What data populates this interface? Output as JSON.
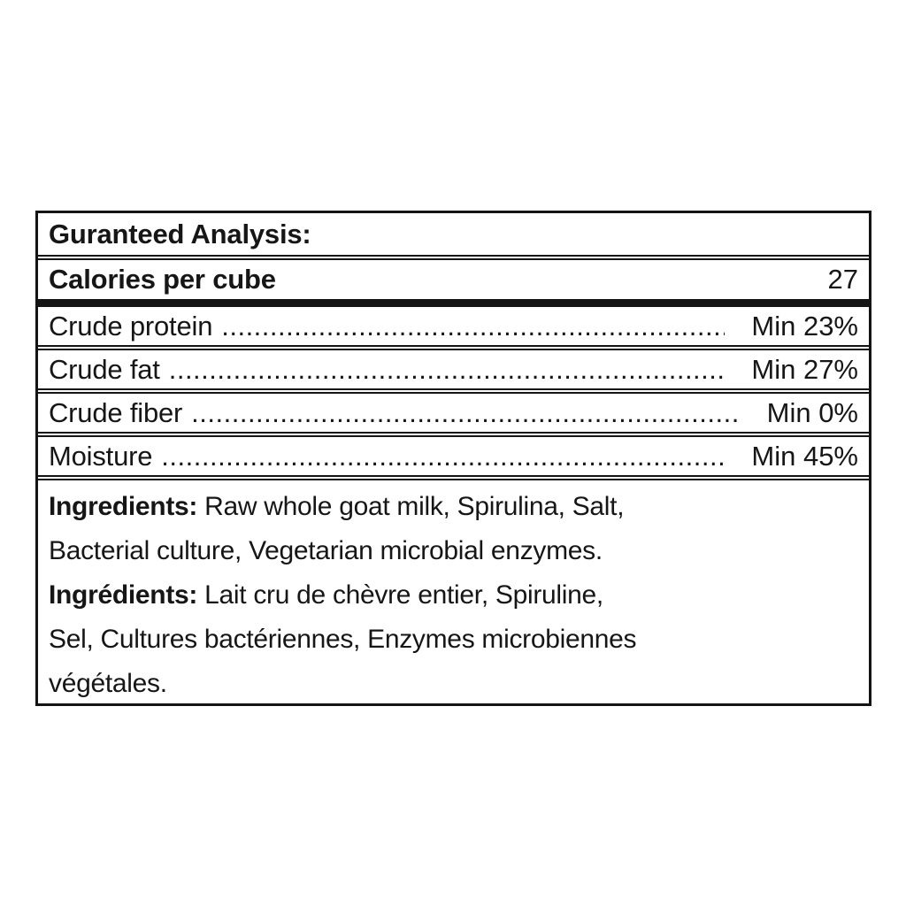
{
  "page": {
    "background_color": "#ffffff",
    "text_color": "#161616",
    "border_color": "#141414"
  },
  "table": {
    "header_title": "Guranteed Analysis:",
    "calories": {
      "label": "Calories per cube",
      "value": "27"
    },
    "analysis_rows": [
      {
        "label": "Crude protein",
        "value": "Min 23%"
      },
      {
        "label": "Crude fat",
        "value": "Min 27%"
      },
      {
        "label": "Crude fiber",
        "value": "Min 0%"
      },
      {
        "label": "Moisture",
        "value": "Min 45%"
      }
    ],
    "leader_dots": "........................................................................................................................",
    "ingredients": {
      "en_label": "Ingredients:",
      "en_line1_rest": " Raw whole goat milk, Spirulina, Salt,",
      "en_line2": "Bacterial culture, Vegetarian microbial enzymes.",
      "fr_label": "Ingrédients:",
      "fr_line1_rest": " Lait cru de chèvre entier, Spiruline,",
      "fr_line2": "Sel, Cultures bactériennes, Enzymes microbiennes",
      "fr_line3": "végétales."
    }
  }
}
